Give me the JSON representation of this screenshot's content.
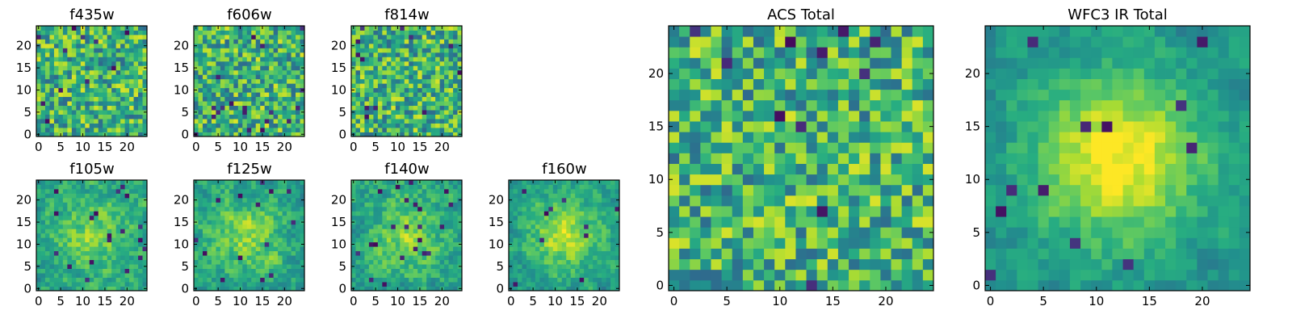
{
  "chart_data": [
    {
      "type": "heatmap",
      "title": "f435w",
      "colormap": "viridis",
      "grid_size": 25,
      "x_ticks": [
        0,
        5,
        10,
        15,
        20
      ],
      "y_ticks": [
        0,
        5,
        10,
        15,
        20
      ],
      "xlim": [
        0,
        24
      ],
      "ylim": [
        0,
        24
      ],
      "peak": "none",
      "seed": 11
    },
    {
      "type": "heatmap",
      "title": "f606w",
      "colormap": "viridis",
      "grid_size": 25,
      "x_ticks": [
        0,
        5,
        10,
        15,
        20
      ],
      "y_ticks": [
        0,
        5,
        10,
        15,
        20
      ],
      "xlim": [
        0,
        24
      ],
      "ylim": [
        0,
        24
      ],
      "peak": "none",
      "seed": 23
    },
    {
      "type": "heatmap",
      "title": "f814w",
      "colormap": "viridis",
      "grid_size": 25,
      "x_ticks": [
        0,
        5,
        10,
        15,
        20
      ],
      "y_ticks": [
        0,
        5,
        10,
        15,
        20
      ],
      "xlim": [
        0,
        24
      ],
      "ylim": [
        0,
        24
      ],
      "peak": "none",
      "seed": 37
    },
    {
      "type": "heatmap",
      "title": "f105w",
      "colormap": "viridis",
      "grid_size": 25,
      "x_ticks": [
        0,
        5,
        10,
        15,
        20
      ],
      "y_ticks": [
        0,
        5,
        10,
        15,
        20
      ],
      "xlim": [
        0,
        24
      ],
      "ylim": [
        0,
        24
      ],
      "peak": "weak",
      "seed": 41
    },
    {
      "type": "heatmap",
      "title": "f125w",
      "colormap": "viridis",
      "grid_size": 25,
      "x_ticks": [
        0,
        5,
        10,
        15,
        20
      ],
      "y_ticks": [
        0,
        5,
        10,
        15,
        20
      ],
      "xlim": [
        0,
        24
      ],
      "ylim": [
        0,
        24
      ],
      "peak": "weak",
      "seed": 53
    },
    {
      "type": "heatmap",
      "title": "f140w",
      "colormap": "viridis",
      "grid_size": 25,
      "x_ticks": [
        0,
        5,
        10,
        15,
        20
      ],
      "y_ticks": [
        0,
        5,
        10,
        15,
        20
      ],
      "xlim": [
        0,
        24
      ],
      "ylim": [
        0,
        24
      ],
      "peak": "weak",
      "seed": 67
    },
    {
      "type": "heatmap",
      "title": "f160w",
      "colormap": "viridis",
      "grid_size": 25,
      "x_ticks": [
        0,
        5,
        10,
        15,
        20
      ],
      "y_ticks": [
        0,
        5,
        10,
        15,
        20
      ],
      "xlim": [
        0,
        24
      ],
      "ylim": [
        0,
        24
      ],
      "peak": "moderate",
      "seed": 79
    },
    {
      "type": "heatmap",
      "title": "ACS Total",
      "colormap": "viridis",
      "grid_size": 25,
      "x_ticks": [
        0,
        5,
        10,
        15,
        20
      ],
      "y_ticks": [
        0,
        5,
        10,
        15,
        20
      ],
      "xlim": [
        0,
        24
      ],
      "ylim": [
        0,
        24
      ],
      "peak": "none",
      "seed": 97
    },
    {
      "type": "heatmap",
      "title": "WFC3 IR Total",
      "colormap": "viridis",
      "grid_size": 25,
      "x_ticks": [
        0,
        5,
        10,
        15,
        20
      ],
      "y_ticks": [
        0,
        5,
        10,
        15,
        20
      ],
      "xlim": [
        0,
        24
      ],
      "ylim": [
        0,
        24
      ],
      "peak": "strong",
      "seed": 113
    }
  ]
}
